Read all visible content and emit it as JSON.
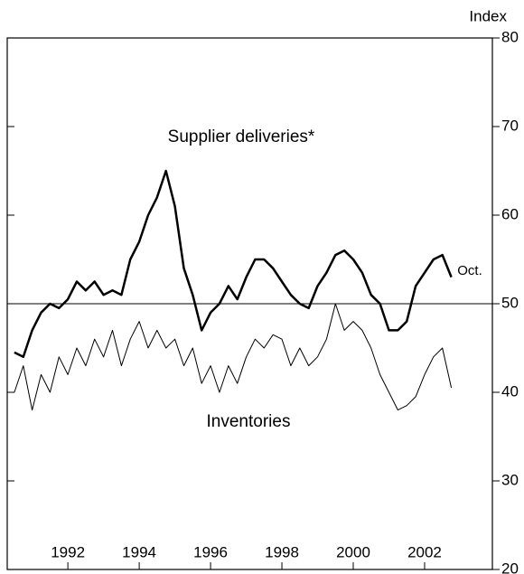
{
  "chart_data": {
    "type": "line",
    "y_axis_label": "Index",
    "annotations": [
      "Supplier deliveries*",
      "Inventories",
      "Oct."
    ],
    "x": [
      1990.5,
      1990.75,
      1991.0,
      1991.25,
      1991.5,
      1991.75,
      1992.0,
      1992.25,
      1992.5,
      1992.75,
      1993.0,
      1993.25,
      1993.5,
      1993.75,
      1994.0,
      1994.25,
      1994.5,
      1994.75,
      1995.0,
      1995.25,
      1995.5,
      1995.75,
      1996.0,
      1996.25,
      1996.5,
      1996.75,
      1997.0,
      1997.25,
      1997.5,
      1997.75,
      1998.0,
      1998.25,
      1998.5,
      1998.75,
      1999.0,
      1999.25,
      1999.5,
      1999.75,
      2000.0,
      2000.25,
      2000.5,
      2000.75,
      2001.0,
      2001.25,
      2001.5,
      2001.75,
      2002.0,
      2002.25,
      2002.5,
      2002.75
    ],
    "series": [
      {
        "name": "Supplier deliveries*",
        "color": "#000000",
        "width": 2.5,
        "values": [
          44.5,
          44,
          47,
          49,
          50,
          49.5,
          50.5,
          52.5,
          51.5,
          52.5,
          51,
          51.5,
          51,
          55,
          57,
          60,
          62,
          65,
          61,
          54,
          51,
          47,
          49,
          50,
          52,
          50.5,
          53,
          55,
          55,
          54,
          52.5,
          51,
          50,
          49.5,
          52,
          53.5,
          55.5,
          56,
          55,
          53.5,
          51,
          50,
          47,
          47,
          48,
          52,
          53.5,
          55,
          55.5,
          53
        ]
      },
      {
        "name": "Inventories",
        "color": "#000000",
        "width": 1,
        "values": [
          40,
          43,
          38,
          42,
          40,
          44,
          42,
          45,
          43,
          46,
          44,
          47,
          43,
          46,
          48,
          45,
          47,
          45,
          46,
          43,
          45,
          41,
          43,
          40,
          43,
          41,
          44,
          46,
          45,
          46.5,
          46,
          43,
          45,
          43,
          44,
          46,
          50,
          47,
          48,
          47,
          45,
          42,
          40,
          38,
          38.5,
          39.5,
          42,
          44,
          45,
          40.5
        ]
      }
    ],
    "reference_line": 50,
    "xlim": [
      1990.3,
      2003.9
    ],
    "xticks": [
      1992,
      1994,
      1996,
      1998,
      2000,
      2002
    ],
    "ylim": [
      20,
      80
    ],
    "yticks": [
      20,
      30,
      40,
      50,
      60,
      70,
      80
    ]
  }
}
